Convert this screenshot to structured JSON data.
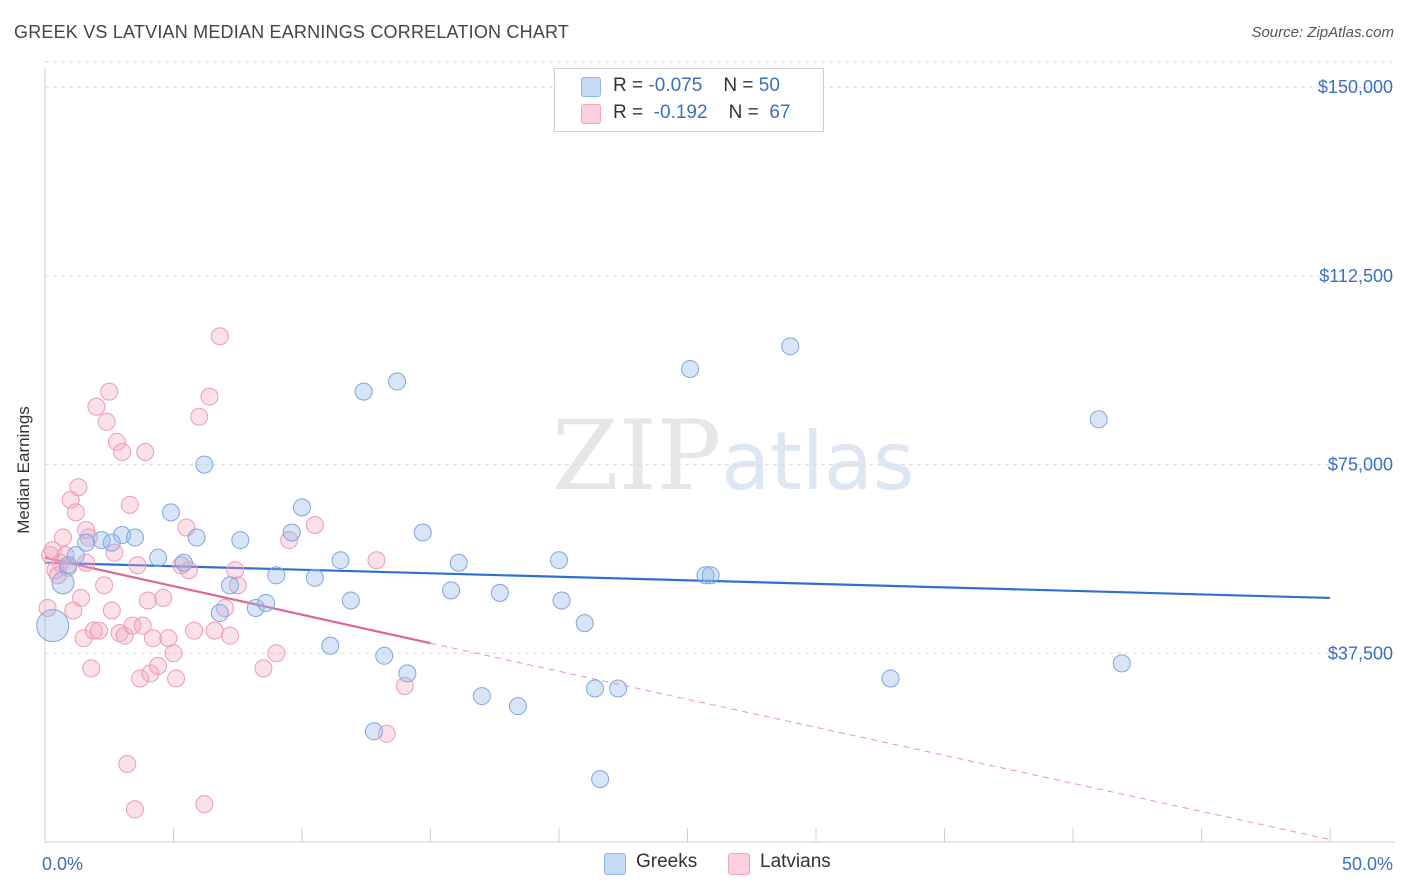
{
  "title": "GREEK VS LATVIAN MEDIAN EARNINGS CORRELATION CHART",
  "source": "Source: ZipAtlas.com",
  "watermark": {
    "zip": "ZIP",
    "atlas": "atlas"
  },
  "legend": {
    "rows": [
      {
        "r_label": "R =",
        "r_value": "-0.075",
        "n_label": "N =",
        "n_value": "50"
      },
      {
        "r_label": "R =",
        "r_value": "-0.192",
        "n_label": "N =",
        "n_value": "67"
      }
    ]
  },
  "colors": {
    "greeks": "#8fb4e8",
    "latvians": "#f2a7c0",
    "greeks_line": "#2f6fd0",
    "latvians_line": "#e2659a",
    "axis_text": "#3b6fc4"
  },
  "chart_data": {
    "type": "scatter",
    "xlabel": "",
    "ylabel": "Median Earnings",
    "xlim": [
      0,
      50
    ],
    "ylim": [
      0,
      155000
    ],
    "x_tick_labels": [
      "0.0%",
      "50.0%"
    ],
    "y_ticks": [
      37500,
      75000,
      112500,
      150000
    ],
    "y_tick_labels": [
      "$37,500",
      "$75,000",
      "$112,500",
      "$150,000"
    ],
    "grid": true,
    "legend_position": "bottom-center",
    "series": [
      {
        "name": "Greeks",
        "trend": [
          [
            0,
            55500
          ],
          [
            50,
            48500
          ]
        ],
        "points": [
          [
            0.3,
            43000
          ],
          [
            0.7,
            51500
          ],
          [
            1.2,
            57000
          ],
          [
            1.6,
            59500
          ],
          [
            2.2,
            60000
          ],
          [
            2.6,
            59500
          ],
          [
            3.0,
            61000
          ],
          [
            3.5,
            60500
          ],
          [
            4.4,
            56500
          ],
          [
            4.9,
            65500
          ],
          [
            5.4,
            55500
          ],
          [
            5.9,
            60500
          ],
          [
            6.2,
            75000
          ],
          [
            6.8,
            45500
          ],
          [
            7.2,
            51000
          ],
          [
            7.6,
            60000
          ],
          [
            8.2,
            46500
          ],
          [
            8.6,
            47500
          ],
          [
            9.0,
            53000
          ],
          [
            9.6,
            61500
          ],
          [
            10.0,
            66500
          ],
          [
            10.5,
            52500
          ],
          [
            11.1,
            39000
          ],
          [
            11.5,
            56000
          ],
          [
            11.9,
            48000
          ],
          [
            12.4,
            89500
          ],
          [
            12.8,
            22000
          ],
          [
            13.2,
            37000
          ],
          [
            13.7,
            91500
          ],
          [
            14.1,
            33500
          ],
          [
            14.7,
            61500
          ],
          [
            15.8,
            50000
          ],
          [
            16.1,
            55500
          ],
          [
            17.0,
            29000
          ],
          [
            17.7,
            49500
          ],
          [
            18.4,
            27000
          ],
          [
            20.0,
            56000
          ],
          [
            20.1,
            48000
          ],
          [
            21.0,
            43500
          ],
          [
            21.4,
            30500
          ],
          [
            21.6,
            12500
          ],
          [
            22.3,
            30500
          ],
          [
            25.1,
            94000
          ],
          [
            25.7,
            53000
          ],
          [
            25.9,
            53000
          ],
          [
            29.0,
            98500
          ],
          [
            32.9,
            32500
          ],
          [
            41.0,
            84000
          ],
          [
            41.9,
            35500
          ],
          [
            0.9,
            55000
          ]
        ]
      },
      {
        "name": "Latvians",
        "trend": [
          [
            0,
            56500
          ],
          [
            15,
            39500
          ]
        ],
        "trend_extension": [
          [
            15,
            39500
          ],
          [
            50,
            500
          ]
        ],
        "points": [
          [
            0.1,
            46500
          ],
          [
            0.2,
            57000
          ],
          [
            0.3,
            58000
          ],
          [
            0.4,
            54000
          ],
          [
            0.5,
            53000
          ],
          [
            0.6,
            55500
          ],
          [
            0.7,
            60500
          ],
          [
            0.8,
            57000
          ],
          [
            0.9,
            54500
          ],
          [
            1.0,
            68000
          ],
          [
            1.1,
            46000
          ],
          [
            1.2,
            65500
          ],
          [
            1.3,
            70500
          ],
          [
            1.4,
            48500
          ],
          [
            1.5,
            40500
          ],
          [
            1.6,
            62000
          ],
          [
            1.7,
            60500
          ],
          [
            1.8,
            34500
          ],
          [
            1.9,
            42000
          ],
          [
            2.0,
            86500
          ],
          [
            2.1,
            42000
          ],
          [
            2.3,
            51000
          ],
          [
            2.5,
            89500
          ],
          [
            2.6,
            46000
          ],
          [
            2.7,
            57500
          ],
          [
            2.8,
            79500
          ],
          [
            2.9,
            41500
          ],
          [
            3.0,
            77500
          ],
          [
            3.1,
            41000
          ],
          [
            3.2,
            15500
          ],
          [
            3.3,
            67000
          ],
          [
            3.4,
            43000
          ],
          [
            3.5,
            6500
          ],
          [
            3.6,
            55000
          ],
          [
            3.7,
            32500
          ],
          [
            3.8,
            43000
          ],
          [
            3.9,
            77500
          ],
          [
            4.0,
            48000
          ],
          [
            4.1,
            33500
          ],
          [
            4.2,
            40500
          ],
          [
            4.4,
            35000
          ],
          [
            4.6,
            48500
          ],
          [
            4.8,
            40500
          ],
          [
            5.0,
            37500
          ],
          [
            5.1,
            32500
          ],
          [
            5.3,
            55000
          ],
          [
            5.5,
            62500
          ],
          [
            5.6,
            54000
          ],
          [
            5.8,
            42000
          ],
          [
            6.0,
            84500
          ],
          [
            6.2,
            7500
          ],
          [
            6.4,
            88500
          ],
          [
            6.6,
            42000
          ],
          [
            6.8,
            100500
          ],
          [
            7.0,
            46500
          ],
          [
            7.2,
            41000
          ],
          [
            7.4,
            54000
          ],
          [
            7.5,
            51000
          ],
          [
            8.5,
            34500
          ],
          [
            9.0,
            37500
          ],
          [
            9.5,
            60000
          ],
          [
            10.5,
            63000
          ],
          [
            12.9,
            56000
          ],
          [
            13.3,
            21500
          ],
          [
            14.0,
            31000
          ],
          [
            2.4,
            83500
          ],
          [
            1.6,
            55500
          ]
        ]
      }
    ]
  }
}
